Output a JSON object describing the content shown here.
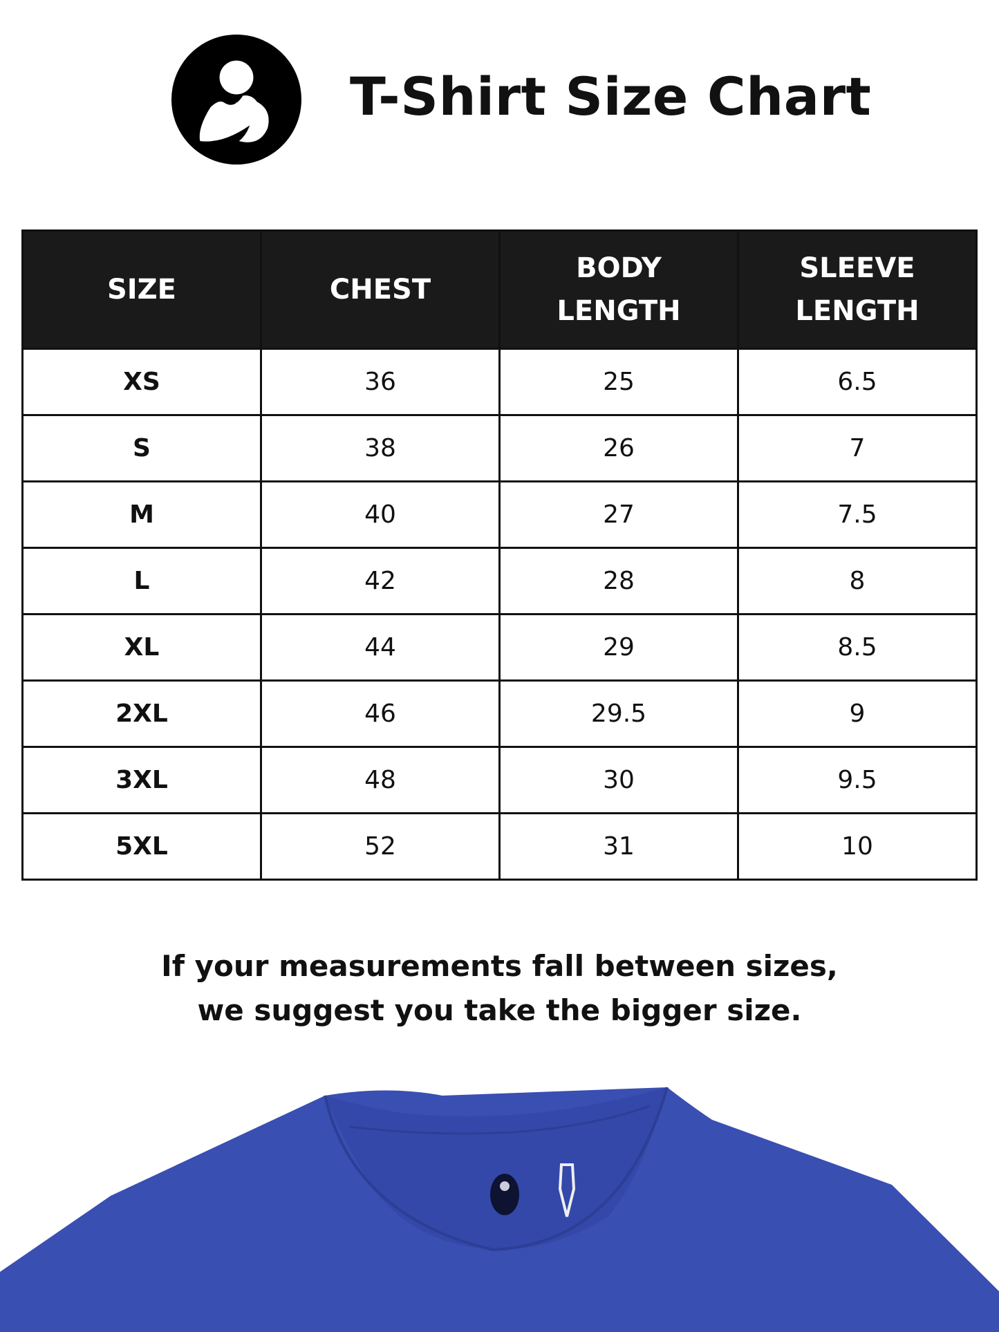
{
  "header": {
    "title": "T-Shirt Size Chart",
    "logo": "mother-child-logo"
  },
  "table": {
    "columns": [
      [
        "SIZE"
      ],
      [
        "CHEST"
      ],
      [
        "BODY",
        "LENGTH"
      ],
      [
        "SLEEVE",
        "LENGTH"
      ]
    ],
    "rows": [
      [
        "XS",
        "36",
        "25",
        "6.5"
      ],
      [
        "S",
        "38",
        "26",
        "7"
      ],
      [
        "M",
        "40",
        "27",
        "7.5"
      ],
      [
        "L",
        "42",
        "28",
        "8"
      ],
      [
        "XL",
        "44",
        "29",
        "8.5"
      ],
      [
        "2XL",
        "46",
        "29.5",
        "9"
      ],
      [
        "3XL",
        "48",
        "30",
        "9.5"
      ],
      [
        "5XL",
        "52",
        "31",
        "10"
      ]
    ]
  },
  "note": {
    "line1": "If your measurements fall between sizes,",
    "line2": "we suggest you take the bigger size."
  },
  "colors": {
    "header_bg": "#1a1a1a",
    "shirt": "#3a4fb2"
  }
}
